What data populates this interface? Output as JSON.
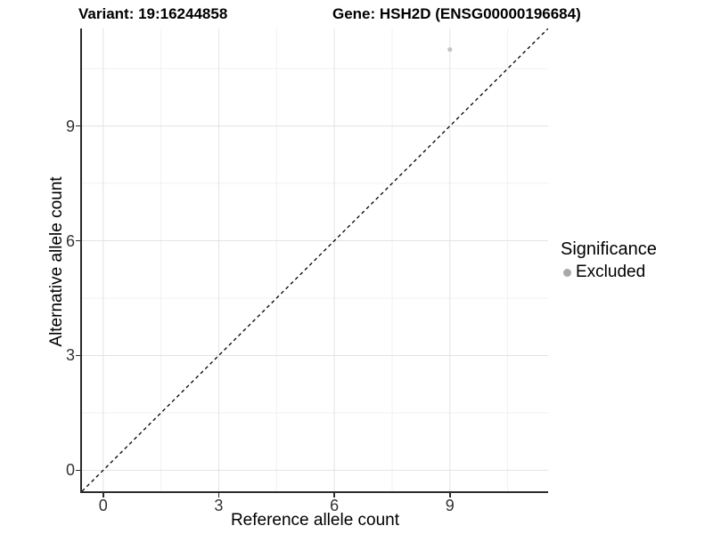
{
  "figure": {
    "title_left": "Variant: 19:16244858",
    "title_right": "Gene: HSH2D (ENSG00000196684)"
  },
  "chart_data": {
    "type": "scatter",
    "title": "Variant: 19:16244858 — Gene: HSH2D (ENSG00000196684)",
    "xlabel": "Reference allele count",
    "ylabel": "Alternative allele count",
    "xlim": [
      -0.55,
      11.55
    ],
    "ylim": [
      -0.55,
      11.55
    ],
    "x_breaks": [
      0,
      3,
      6,
      9
    ],
    "y_breaks": [
      0,
      3,
      6,
      9
    ],
    "x_minor_breaks": [
      1.5,
      4.5,
      7.5,
      10.5
    ],
    "y_minor_breaks": [
      1.5,
      4.5,
      7.5,
      10.5
    ],
    "grid": true,
    "points": [
      {
        "x": 9,
        "y": 11,
        "series": "Excluded"
      }
    ],
    "reference_line": {
      "slope": 1,
      "intercept": 0,
      "style": "dashed"
    },
    "legend": {
      "title": "Significance",
      "position": "right",
      "items": [
        {
          "label": "Excluded",
          "color": "#A9A9A9"
        }
      ]
    },
    "colors": {
      "point": "#C4C4C4",
      "grid_major": "#E3E3E3",
      "grid_minor": "#F1F1F1",
      "axis_line": "#2b2b2b",
      "tick_label": "#333333",
      "reference_line": "#000000"
    }
  }
}
